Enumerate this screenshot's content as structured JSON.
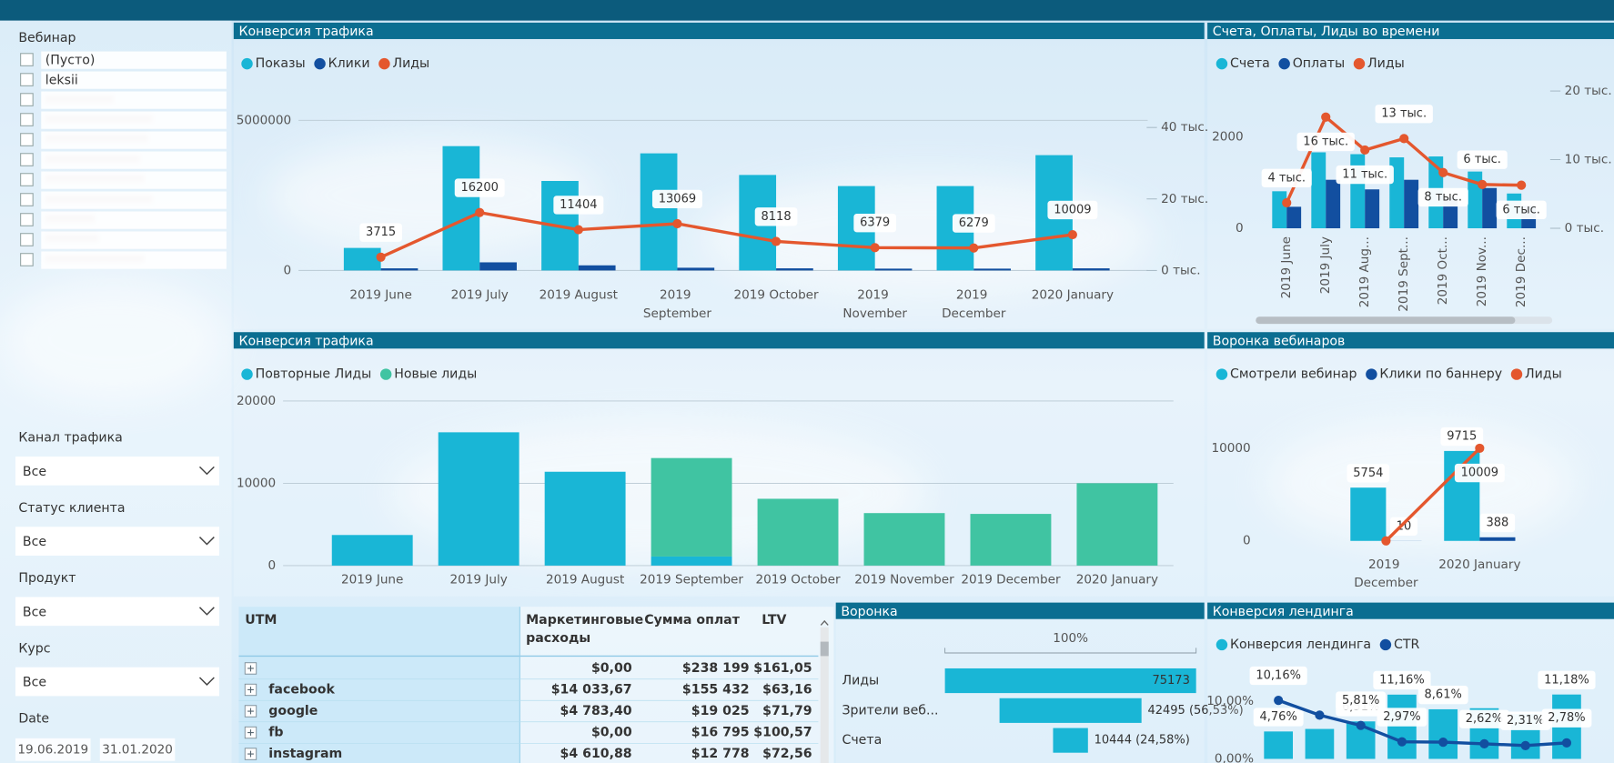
{
  "filters": {
    "webinar": {
      "title": "Вебинар",
      "items": [
        "(Пусто)",
        "leksii"
      ]
    },
    "dropdowns": [
      {
        "label": "Канал трафика",
        "value": "Все"
      },
      {
        "label": "Статус клиента",
        "value": "Все"
      },
      {
        "label": "Продукт",
        "value": "Все"
      },
      {
        "label": "Курс",
        "value": "Все"
      }
    ],
    "date": {
      "label": "Date",
      "from": "19.06.2019",
      "to": "31.01.2020"
    }
  },
  "chart_data": [
    {
      "type": "combo",
      "title": "Конверсия трафика",
      "categories": [
        "2019 June",
        "2019 July",
        "2019 August",
        "2019 September",
        "2019 October",
        "2019 November",
        "2019 December",
        "2020 January"
      ],
      "series": [
        {
          "name": "Показы",
          "type": "bar",
          "color": "#19b6d6",
          "values": [
            750000,
            4140000,
            2980000,
            3900000,
            3180000,
            2810000,
            2810000,
            3840000
          ]
        },
        {
          "name": "Клики",
          "type": "bar",
          "color": "#124fa0",
          "values": [
            70000,
            270000,
            170000,
            90000,
            70000,
            60000,
            60000,
            70000
          ]
        },
        {
          "name": "Лиды",
          "type": "line",
          "axis": "y2",
          "color": "#e4572e",
          "show_labels": true,
          "values": [
            3715,
            16200,
            11404,
            13069,
            8118,
            6379,
            6279,
            10009
          ]
        }
      ],
      "ylim": [
        0,
        5000000
      ],
      "yticks": [
        0,
        5000000
      ],
      "y2lim": [
        0,
        42000
      ],
      "y2ticks": [
        {
          "value": 0,
          "label": "0 тыс."
        },
        {
          "value": 20000,
          "label": "20 тыс."
        },
        {
          "value": 40000,
          "label": "40 тыс."
        }
      ],
      "grid": true
    },
    {
      "type": "combo",
      "title": "Счета, Оплаты, Лиды во времени",
      "categories": [
        "2019 June",
        "2019 July",
        "2019 Aug...",
        "2019 Sept...",
        "2019 Oct...",
        "2019 Nov...",
        "2019 Dec..."
      ],
      "series": [
        {
          "name": "Счета",
          "type": "bar",
          "color": "#19b6d6",
          "values": [
            809,
            1660,
            1620,
            1550,
            1570,
            1240,
            760
          ]
        },
        {
          "name": "Оплаты",
          "type": "bar",
          "color": "#124fa0",
          "values": [
            470,
            1060,
            850,
            1060,
            670,
            880,
            490
          ]
        },
        {
          "name": "Лиды",
          "type": "line",
          "axis": "y2",
          "color": "#e4572e",
          "values": [
            3715,
            16200,
            11404,
            13069,
            8118,
            6379,
            6279
          ],
          "value_labels": [
            "4 тыс.",
            "16 тыс.",
            "11 тыс.",
            "13 тыс.",
            "8 тыс.",
            "6 тыс.",
            "6 тыс."
          ]
        }
      ],
      "ylim": [
        0,
        3000
      ],
      "yticks": [
        0,
        2000
      ],
      "y2lim": [
        0,
        20000
      ],
      "y2ticks": [
        {
          "value": 0,
          "label": "0 тыс."
        },
        {
          "value": 10000,
          "label": "10 тыс."
        },
        {
          "value": 20000,
          "label": "20 тыс."
        }
      ],
      "grid": false
    },
    {
      "type": "stacked_bar",
      "title": "Конверсия трафика",
      "categories": [
        "2019 June",
        "2019 July",
        "2019 August",
        "2019 September",
        "2019 October",
        "2019 November",
        "2019 December",
        "2020 January"
      ],
      "series": [
        {
          "name": "Повторные Лиды",
          "color": "#19b6d6",
          "values": [
            3715,
            16200,
            11404,
            1100,
            0,
            0,
            0,
            0
          ]
        },
        {
          "name": "Новые лиды",
          "color": "#40c4a2",
          "values": [
            0,
            0,
            0,
            11969,
            8118,
            6379,
            6279,
            10009
          ]
        }
      ],
      "ylim": [
        0,
        20000
      ],
      "yticks": [
        0,
        10000,
        20000
      ],
      "grid": true
    },
    {
      "type": "combo",
      "title": "Воронка вебинаров",
      "categories": [
        "2019 December",
        "2020 January"
      ],
      "series": [
        {
          "name": "Смотрели вебинар",
          "type": "bar",
          "color": "#19b6d6",
          "show_labels": true,
          "values": [
            5754,
            9715
          ]
        },
        {
          "name": "Клики по баннеру",
          "type": "bar",
          "color": "#124fa0",
          "show_labels": true,
          "values": [
            10,
            388
          ]
        },
        {
          "name": "Лиды",
          "type": "line",
          "color": "#e4572e",
          "values": [
            0,
            10009
          ],
          "value_labels": [
            null,
            "10009"
          ]
        }
      ],
      "ylim": [
        0,
        12000
      ],
      "yticks": [
        0,
        10000
      ],
      "grid": false
    },
    {
      "type": "funnel",
      "title": "Воронка",
      "scale_label": "100%",
      "color": "#19b6d6",
      "categories": [
        "Лиды",
        "Зрители веб...",
        "Счета"
      ],
      "values": [
        75173,
        42495,
        10444
      ],
      "value_labels": [
        "75173",
        "42495 (56,53%)",
        "10444 (24,58%)"
      ]
    },
    {
      "type": "combo",
      "title": "Конверсия лендинга",
      "categories": [
        null,
        null,
        null,
        null,
        null,
        null,
        null,
        null
      ],
      "series": [
        {
          "name": "Конверсия лендинга",
          "type": "bar",
          "color": "#19b6d6",
          "values": [
            4.76,
            5.2,
            6.51,
            11.16,
            8.61,
            8.8,
            7.8,
            11.18
          ],
          "value_labels": [
            "4,76%",
            null,
            "6,51%",
            "11,16%",
            "8,61%",
            null,
            null,
            "11,18%"
          ]
        },
        {
          "name": "CTR",
          "type": "line",
          "color": "#124fa0",
          "values": [
            10.16,
            7.6,
            5.81,
            2.97,
            2.9,
            2.62,
            2.31,
            2.78
          ],
          "value_labels": [
            "10,16%",
            null,
            "5,81%",
            "2,97%",
            null,
            "2,62%",
            "2,31%",
            "2,78%"
          ]
        }
      ],
      "ylim": [
        0,
        14
      ],
      "yticks": [
        {
          "value": 0,
          "label": "0,00%"
        },
        {
          "value": 10,
          "label": "10,00%"
        }
      ],
      "grid": false
    }
  ],
  "table": {
    "columns": [
      "UTM",
      "Маркетинговые расходы",
      "Сумма оплат",
      "LTV"
    ],
    "rows": [
      [
        null,
        "$0,00",
        "$238 199",
        "$161,05"
      ],
      [
        "facebook",
        "$14 033,67",
        "$155 432",
        "$63,16"
      ],
      [
        "google",
        "$4 783,40",
        "$19 025",
        "$71,79"
      ],
      [
        "fb",
        "$0,00",
        "$16 795",
        "$100,57"
      ],
      [
        "instagram",
        "$4 610,88",
        "$12 778",
        "$72,56"
      ]
    ]
  }
}
